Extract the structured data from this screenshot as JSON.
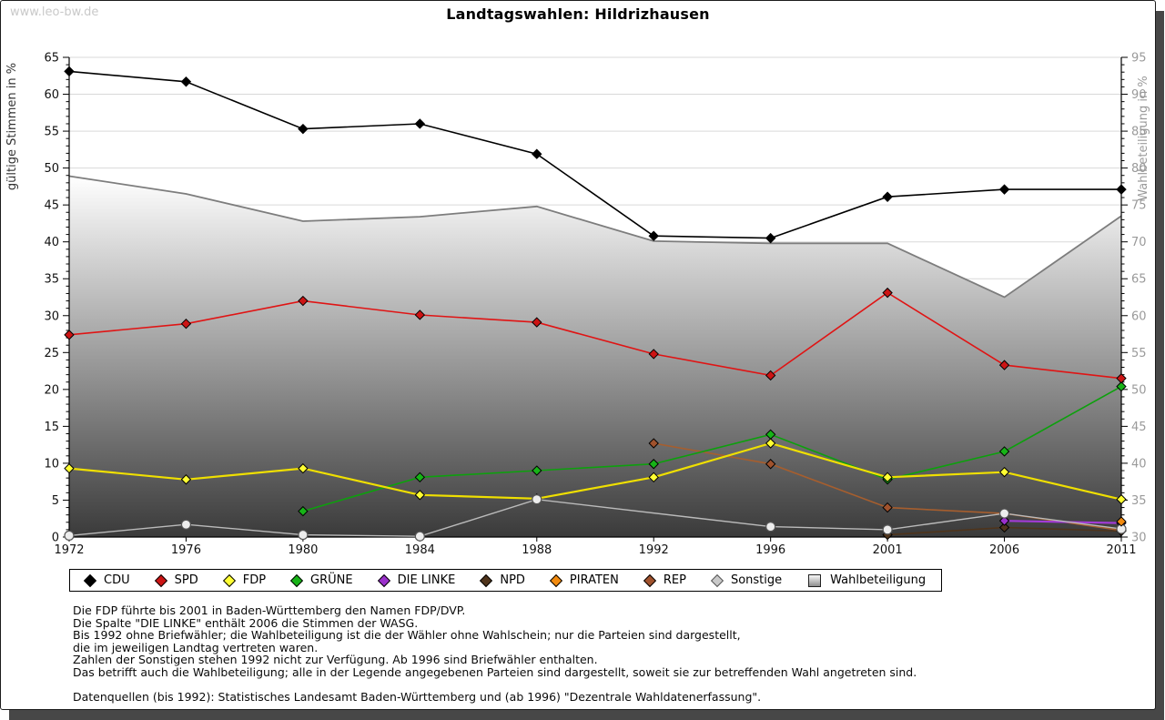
{
  "watermark": "www.leo-bw.de",
  "title": "Landtagswahlen: Hildrizhausen",
  "chart_data": {
    "type": "line",
    "x": [
      1972,
      1976,
      1980,
      1984,
      1988,
      1992,
      1996,
      2001,
      2006,
      2011
    ],
    "left_axis": {
      "label": "gültige Stimmen in %",
      "range": [
        0,
        65
      ],
      "tick_step": 5,
      "minor_step": 1
    },
    "right_axis": {
      "label": "Wahlbeteiligung in %",
      "range": [
        30,
        95
      ],
      "tick_step": 5,
      "minor_step": 1
    },
    "grid": true,
    "legend_position": "bottom",
    "series": [
      {
        "name": "CDU",
        "color": "#000000",
        "marker": "diamond",
        "marker_fill": "#000000",
        "values": [
          63.1,
          61.7,
          55.3,
          56.0,
          51.9,
          40.8,
          40.5,
          46.1,
          47.1,
          47.1
        ]
      },
      {
        "name": "SPD",
        "color": "#e01414",
        "marker": "diamond",
        "marker_fill": "#cc1414",
        "values": [
          27.4,
          28.9,
          32.0,
          30.1,
          29.1,
          24.8,
          21.9,
          33.1,
          23.3,
          21.5
        ]
      },
      {
        "name": "FDP",
        "color": "#efdf00",
        "marker": "diamond",
        "marker_fill": "#ffff33",
        "values": [
          9.3,
          7.8,
          9.3,
          5.7,
          5.2,
          8.1,
          12.7,
          8.1,
          8.8,
          5.1
        ]
      },
      {
        "name": "GRÜNE",
        "color": "#0da00d",
        "marker": "diamond",
        "marker_fill": "#17b317",
        "values": [
          null,
          null,
          3.5,
          8.1,
          9.0,
          9.9,
          13.9,
          7.8,
          11.6,
          20.4
        ]
      },
      {
        "name": "DIE LINKE",
        "color": "#a23bd6",
        "marker": "diamond",
        "marker_fill": "#9b30cc",
        "values": [
          null,
          null,
          null,
          null,
          null,
          null,
          null,
          null,
          2.2,
          1.9
        ]
      },
      {
        "name": "NPD",
        "color": "#4f341b",
        "marker": "diamond",
        "marker_fill": "#4f341b",
        "values": [
          null,
          null,
          null,
          null,
          null,
          null,
          null,
          0.3,
          1.3,
          0.8
        ]
      },
      {
        "name": "PIRATEN",
        "color": "#f28a0e",
        "marker": "diamond",
        "marker_fill": "#f28a0e",
        "values": [
          null,
          null,
          null,
          null,
          null,
          null,
          null,
          null,
          null,
          2.1
        ]
      },
      {
        "name": "REP",
        "color": "#a65e2e",
        "marker": "diamond",
        "marker_fill": "#a0522d",
        "values": [
          null,
          null,
          null,
          null,
          null,
          12.7,
          9.9,
          4.0,
          3.2,
          0.9
        ]
      },
      {
        "name": "Sonstige",
        "color": "#bababa",
        "marker": "circle",
        "marker_fill": "#ededed",
        "values": [
          0.2,
          1.7,
          0.3,
          0.1,
          5.1,
          null,
          1.4,
          1.0,
          3.2,
          1.1
        ]
      }
    ],
    "turnout_series": {
      "name": "Wahlbeteiligung",
      "axis": "right",
      "style": "area",
      "line_color": "#7d7d7d",
      "area_gradient_top": "#ffffff",
      "area_gradient_bottom": "#3a3a3a",
      "values": [
        78.9,
        76.5,
        72.8,
        73.4,
        74.8,
        70.1,
        69.8,
        69.8,
        62.5,
        73.5
      ]
    }
  },
  "footnotes": [
    "Die FDP führte bis 2001 in Baden-Württemberg den Namen FDP/DVP.",
    "Die Spalte \"DIE LINKE\" enthält 2006 die Stimmen der WASG.",
    "Bis 1992 ohne Briefwähler; die Wahlbeteiligung ist die der Wähler ohne Wahlschein; nur die Parteien sind dargestellt,",
    "die im jeweiligen Landtag vertreten waren.",
    "Zahlen der Sonstigen stehen 1992 nicht zur Verfügung. Ab 1996 sind Briefwähler enthalten.",
    "Das betrifft auch die Wahlbeteiligung; alle in der Legende angegebenen Parteien sind dargestellt, soweit sie zur betreffenden Wahl angetreten sind.",
    "",
    "Datenquellen (bis 1992): Statistisches Landesamt Baden-Württemberg und (ab 1996) \"Dezentrale Wahldatenerfassung\"."
  ]
}
